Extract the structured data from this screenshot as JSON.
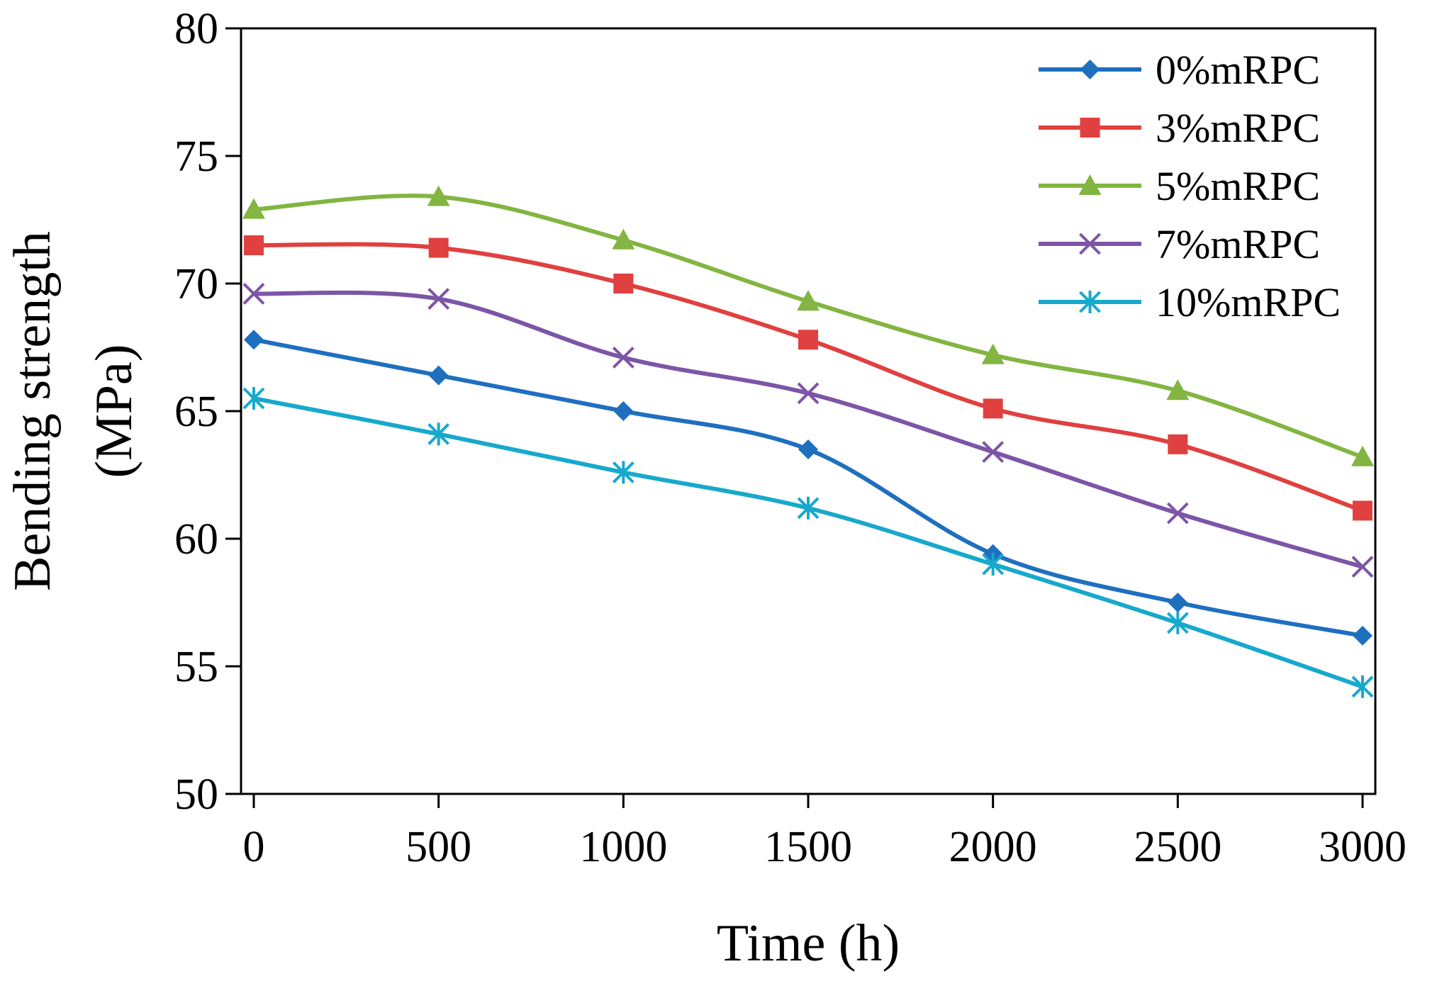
{
  "chart_data": {
    "type": "line",
    "xlabel": "Time (h)",
    "ylabel_line1": "Bending strength",
    "ylabel_line2": "(MPa)",
    "xlim": [
      0,
      3000
    ],
    "ylim": [
      50,
      80
    ],
    "x_ticks": [
      0,
      500,
      1000,
      1500,
      2000,
      2500,
      3000
    ],
    "y_ticks": [
      50,
      55,
      60,
      65,
      70,
      75,
      80
    ],
    "grid": false,
    "legend_position": "top-right",
    "x": [
      0,
      500,
      1000,
      1500,
      2000,
      2500,
      3000
    ],
    "series": [
      {
        "name": "0%mRPC",
        "color": "#1f6fbf",
        "marker": "diamond",
        "values": [
          67.8,
          66.4,
          65.0,
          63.5,
          59.4,
          57.5,
          56.2
        ]
      },
      {
        "name": "3%mRPC",
        "color": "#e0403f",
        "marker": "square",
        "values": [
          71.5,
          71.4,
          70.0,
          67.8,
          65.1,
          63.7,
          61.1
        ]
      },
      {
        "name": "5%mRPC",
        "color": "#82b541",
        "marker": "triangle",
        "values": [
          72.9,
          73.4,
          71.7,
          69.3,
          67.2,
          65.8,
          63.2
        ]
      },
      {
        "name": "7%mRPC",
        "color": "#7d55a6",
        "marker": "x",
        "values": [
          69.6,
          69.4,
          67.1,
          65.7,
          63.4,
          61.0,
          58.9
        ]
      },
      {
        "name": "10%mRPC",
        "color": "#17a9cc",
        "marker": "asterisk",
        "values": [
          65.5,
          64.1,
          62.6,
          61.2,
          59.0,
          56.7,
          54.2
        ]
      }
    ]
  }
}
